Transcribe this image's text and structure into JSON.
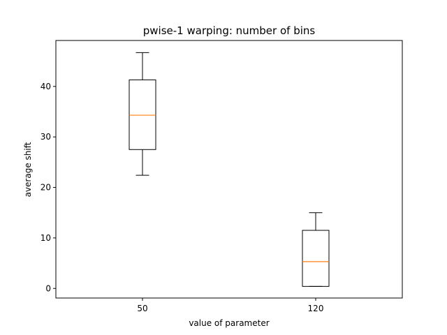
{
  "chart_data": {
    "type": "box",
    "title": "pwise-1 warping: number of bins",
    "xlabel": "value of parameter",
    "ylabel": "average shift",
    "categories": [
      "50",
      "120"
    ],
    "boxes": [
      {
        "category": "50",
        "whisker_low": 22.4,
        "q1": 27.5,
        "median": 34.3,
        "q3": 41.3,
        "whisker_high": 46.7
      },
      {
        "category": "120",
        "whisker_low": 0.4,
        "q1": 0.4,
        "median": 5.3,
        "q3": 11.5,
        "whisker_high": 15.0
      }
    ],
    "yticks": [
      0,
      10,
      20,
      30,
      40
    ],
    "ylim": [
      -1.9,
      49.1
    ],
    "xlim": [
      0.5,
      2.5
    ],
    "grid": false,
    "colors": {
      "box": "#000000",
      "median": "#ff7f0e",
      "axes": "#000000"
    }
  }
}
